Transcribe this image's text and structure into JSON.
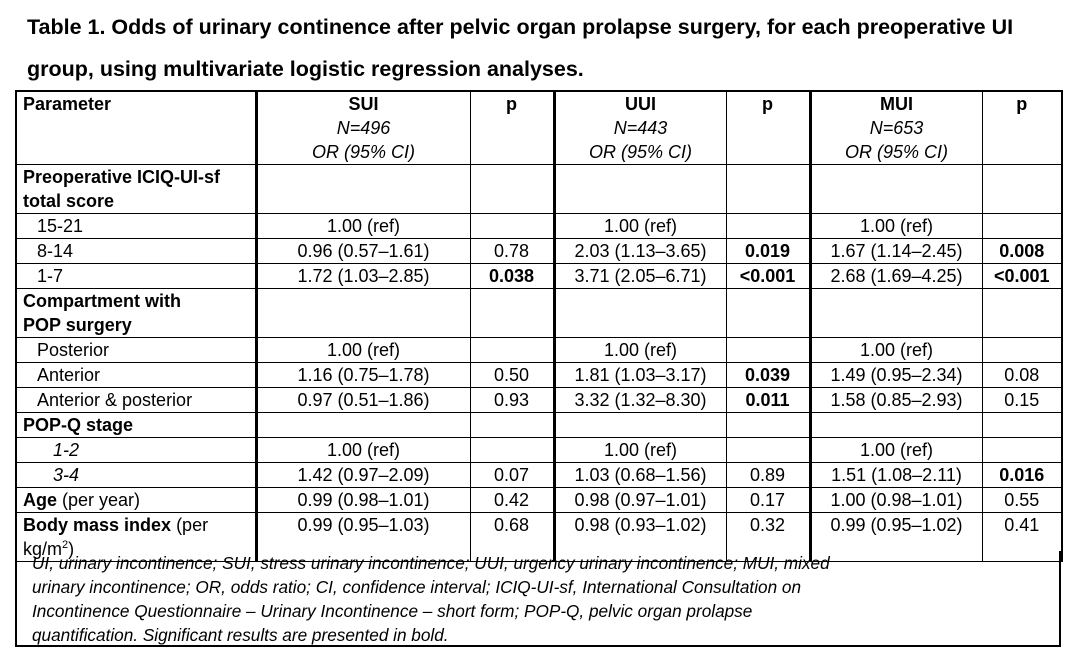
{
  "title": "Table 1. Odds of urinary continence after pelvic organ prolapse surgery, for each preoperative UI group, using multivariate logistic regression analyses.",
  "header": {
    "parameter": "Parameter",
    "groups": [
      {
        "name": "SUI",
        "n": "N=496",
        "measure": "OR (95% CI)"
      },
      {
        "name": "UUI",
        "n": "N=443",
        "measure": "OR (95% CI)"
      },
      {
        "name": "MUI",
        "n": "N=653",
        "measure": "OR (95% CI)"
      }
    ],
    "p_label": "p"
  },
  "sections": [
    {
      "label_line1": "Preoperative ICIQ-UI-sf",
      "label_line2": "total score",
      "rows": [
        {
          "label": "15-21",
          "sui": "1.00 (ref)",
          "sui_p": "",
          "uui": "1.00 (ref)",
          "uui_p": "",
          "mui": "1.00 (ref)",
          "mui_p": ""
        },
        {
          "label": "8-14",
          "sui": "0.96 (0.57–1.61)",
          "sui_p": "0.78",
          "uui": "2.03 (1.13–3.65)",
          "uui_p": "0.019",
          "mui": "1.67 (1.14–2.45)",
          "mui_p": "0.008"
        },
        {
          "label": "1-7",
          "sui": "1.72 (1.03–2.85)",
          "sui_p": "0.038",
          "uui": "3.71 (2.05–6.71)",
          "uui_p": "<0.001",
          "mui": "2.68 (1.69–4.25)",
          "mui_p": "<0.001"
        }
      ]
    },
    {
      "label_line1": "Compartment with",
      "label_line2": "POP surgery",
      "rows": [
        {
          "label": "Posterior",
          "sui": "1.00 (ref)",
          "sui_p": "",
          "uui": "1.00 (ref)",
          "uui_p": "",
          "mui": "1.00 (ref)",
          "mui_p": ""
        },
        {
          "label": "Anterior",
          "sui": "1.16 (0.75–1.78)",
          "sui_p": "0.50",
          "uui": "1.81 (1.03–3.17)",
          "uui_p": "0.039",
          "mui": "1.49 (0.95–2.34)",
          "mui_p": "0.08"
        },
        {
          "label": "Anterior & posterior",
          "sui": "0.97 (0.51–1.86)",
          "sui_p": "0.93",
          "uui": "3.32 (1.32–8.30)",
          "uui_p": "0.011",
          "mui": "1.58 (0.85–2.93)",
          "mui_p": "0.15"
        }
      ]
    },
    {
      "label": "POP-Q stage",
      "rows": [
        {
          "label": "1-2",
          "sui": "1.00 (ref)",
          "sui_p": "",
          "uui": "1.00 (ref)",
          "uui_p": "",
          "mui": "1.00 (ref)",
          "mui_p": ""
        },
        {
          "label": "3-4",
          "sui": "1.42 (0.97–2.09)",
          "sui_p": "0.07",
          "uui": "1.03 (0.68–1.56)",
          "uui_p": "0.89",
          "mui": "1.51 (1.08–2.11)",
          "mui_p": "0.016"
        }
      ]
    }
  ],
  "age_row": {
    "label_bold": "Age",
    "label_rest": " (per year)",
    "sui": "0.99 (0.98–1.01)",
    "sui_p": "0.42",
    "uui": "0.98 (0.97–1.01)",
    "uui_p": "0.17",
    "mui": "1.00 (0.98–1.01)",
    "mui_p": "0.55"
  },
  "bmi_row": {
    "label_bold": "Body mass index",
    "label_rest": " (per",
    "label_line2": "kg/m",
    "label_sup": "2",
    "label_close": ")",
    "sui": "0.99 (0.95–1.03)",
    "sui_p": "0.68",
    "uui": "0.98 (0.93–1.02)",
    "uui_p": "0.32",
    "mui": "0.99 (0.95–1.02)",
    "mui_p": "0.41"
  },
  "footnote": {
    "line1": "UI, urinary incontinence; SUI, stress urinary incontinence; UUI, urgency urinary incontinence; MUI, mixed",
    "line2": "urinary incontinence; OR, odds ratio; CI, confidence interval; ICIQ-UI-sf, International Consultation on",
    "line3": "Incontinence Questionnaire – Urinary Incontinence – short form; POP-Q, pelvic organ prolapse",
    "line4": "quantification. Significant results are presented in bold."
  }
}
